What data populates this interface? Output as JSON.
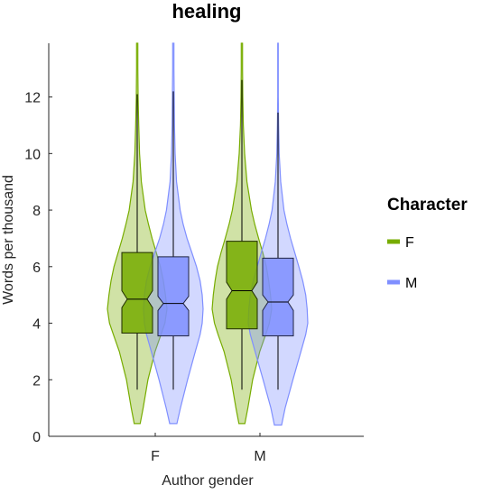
{
  "chart_data": {
    "type": "violin",
    "title": "healing",
    "xlabel": "Author gender",
    "ylabel": "Words per thousand",
    "categories": [
      "F",
      "M"
    ],
    "ylim": [
      0,
      13.9
    ],
    "yticks": [
      0,
      2,
      4,
      6,
      8,
      10,
      12
    ],
    "legend": {
      "title": "Character",
      "position": "right"
    },
    "series": [
      {
        "name": "F",
        "color": "#77AC00",
        "groups": [
          {
            "category": "F",
            "q1": 3.65,
            "median": 4.85,
            "q3": 6.5,
            "notch_low": 4.55,
            "notch_high": 5.15,
            "whisker_low": 1.65,
            "whisker_high": 12.1,
            "min": 0.45,
            "max": 13.9,
            "density": [
              [
                0.45,
                0.1
              ],
              [
                1.0,
                0.2
              ],
              [
                2.0,
                0.36
              ],
              [
                3.0,
                0.6
              ],
              [
                3.6,
                0.8
              ],
              [
                4.0,
                0.93
              ],
              [
                4.5,
                1.0
              ],
              [
                5.0,
                0.95
              ],
              [
                5.5,
                0.88
              ],
              [
                6.0,
                0.78
              ],
              [
                6.5,
                0.64
              ],
              [
                7.0,
                0.5
              ],
              [
                7.5,
                0.38
              ],
              [
                8.0,
                0.27
              ],
              [
                9.0,
                0.14
              ],
              [
                10.0,
                0.08
              ],
              [
                11.0,
                0.05
              ],
              [
                12.0,
                0.03
              ],
              [
                13.0,
                0.02
              ],
              [
                13.9,
                0.02
              ]
            ]
          },
          {
            "category": "M",
            "q1": 3.8,
            "median": 5.15,
            "q3": 6.9,
            "notch_low": 4.85,
            "notch_high": 5.45,
            "whisker_low": 1.65,
            "whisker_high": 12.6,
            "min": 0.45,
            "max": 13.9,
            "density": [
              [
                0.45,
                0.1
              ],
              [
                1.0,
                0.2
              ],
              [
                2.0,
                0.36
              ],
              [
                3.0,
                0.6
              ],
              [
                3.6,
                0.8
              ],
              [
                4.0,
                0.92
              ],
              [
                4.5,
                1.0
              ],
              [
                5.0,
                0.96
              ],
              [
                5.5,
                0.9
              ],
              [
                6.0,
                0.82
              ],
              [
                6.5,
                0.7
              ],
              [
                7.0,
                0.56
              ],
              [
                7.5,
                0.43
              ],
              [
                8.0,
                0.32
              ],
              [
                9.0,
                0.17
              ],
              [
                10.0,
                0.09
              ],
              [
                11.0,
                0.05
              ],
              [
                12.0,
                0.03
              ],
              [
                13.0,
                0.02
              ],
              [
                13.9,
                0.02
              ]
            ]
          }
        ]
      },
      {
        "name": "M",
        "color": "#7F8FFF",
        "groups": [
          {
            "category": "F",
            "q1": 3.55,
            "median": 4.7,
            "q3": 6.35,
            "notch_low": 4.45,
            "notch_high": 4.95,
            "whisker_low": 1.65,
            "whisker_high": 12.2,
            "min": 0.45,
            "max": 13.9,
            "density": [
              [
                0.45,
                0.12
              ],
              [
                1.0,
                0.24
              ],
              [
                2.0,
                0.48
              ],
              [
                3.0,
                0.74
              ],
              [
                3.6,
                0.9
              ],
              [
                4.0,
                0.97
              ],
              [
                4.5,
                1.0
              ],
              [
                5.0,
                0.97
              ],
              [
                5.5,
                0.9
              ],
              [
                6.0,
                0.78
              ],
              [
                6.5,
                0.62
              ],
              [
                7.0,
                0.46
              ],
              [
                7.5,
                0.33
              ],
              [
                8.0,
                0.23
              ],
              [
                9.0,
                0.11
              ],
              [
                10.0,
                0.06
              ],
              [
                11.0,
                0.04
              ],
              [
                12.0,
                0.03
              ],
              [
                13.0,
                0.02
              ],
              [
                13.9,
                0.02
              ]
            ]
          },
          {
            "category": "M",
            "q1": 3.55,
            "median": 4.75,
            "q3": 6.3,
            "notch_low": 4.45,
            "notch_high": 5.0,
            "whisker_low": 1.65,
            "whisker_high": 11.45,
            "min": 0.4,
            "max": 13.9,
            "density": [
              [
                0.4,
                0.12
              ],
              [
                1.0,
                0.24
              ],
              [
                2.0,
                0.5
              ],
              [
                3.0,
                0.77
              ],
              [
                3.6,
                0.93
              ],
              [
                4.0,
                1.0
              ],
              [
                4.5,
                0.98
              ],
              [
                5.0,
                0.93
              ],
              [
                5.5,
                0.83
              ],
              [
                6.0,
                0.7
              ],
              [
                6.5,
                0.56
              ],
              [
                7.0,
                0.42
              ],
              [
                7.5,
                0.3
              ],
              [
                8.0,
                0.2
              ],
              [
                9.0,
                0.09
              ],
              [
                10.0,
                0.04
              ],
              [
                11.0,
                0.02
              ],
              [
                12.0,
                0.01
              ],
              [
                13.0,
                0.01
              ],
              [
                13.9,
                0.01
              ]
            ]
          }
        ]
      }
    ]
  }
}
